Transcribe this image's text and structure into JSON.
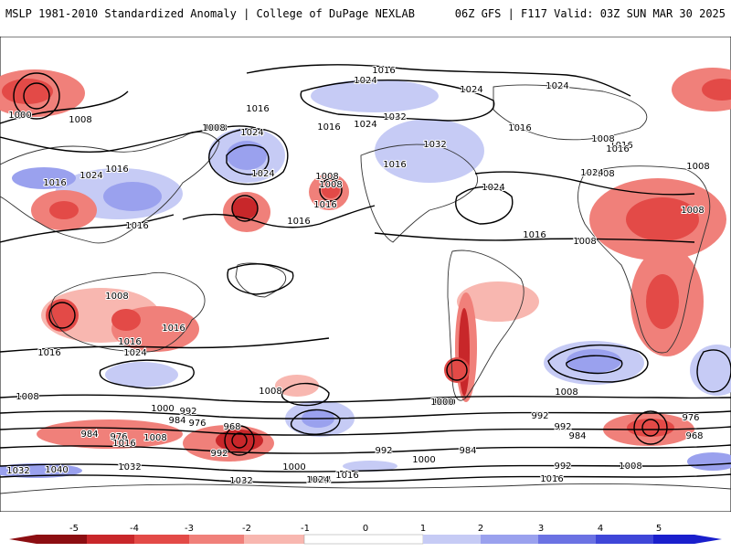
{
  "header": {
    "left_title": "MSLP 1981-2010 Standardized Anomaly | College of DuPage NEXLAB",
    "right_title": "06Z GFS | F117 Valid: 03Z SUN MAR 30 2025"
  },
  "colors": {
    "neg5": "#8c0e12",
    "neg4": "#c8272a",
    "neg3": "#e34a47",
    "neg2": "#f0807a",
    "neg1": "#f8b7b0",
    "pos1": "#c6cbf5",
    "pos2": "#9aa1ee",
    "pos3": "#6b72e3",
    "pos4": "#3f46d8",
    "pos5": "#1a1fcc"
  },
  "colorbar": {
    "ticks": [
      "-5",
      "-4",
      "-3",
      "-2",
      "-1",
      "0",
      "1",
      "2",
      "3",
      "4",
      "5"
    ]
  },
  "isobar_labels": [
    "1016",
    "1024",
    "1024",
    "1024",
    "1000",
    "1008",
    "1008",
    "1024",
    "1016",
    "1032",
    "1016",
    "1024",
    "1032",
    "1016",
    "1016",
    "1024",
    "1016",
    "1008",
    "1024",
    "1008",
    "1016",
    "1008",
    "1024",
    "1016",
    "1016",
    "1008",
    "1008",
    "1016",
    "1008",
    "1008",
    "1016",
    "1016",
    "1024",
    "1016",
    "1008",
    "1008",
    "1016",
    "1016",
    "1016",
    "1024",
    "1008",
    "1000",
    "1008",
    "1000",
    "992",
    "984",
    "976",
    "984",
    "976",
    "1016",
    "1008",
    "968",
    "992",
    "1000",
    "984",
    "992",
    "1008",
    "992",
    "984",
    "1000",
    "976",
    "968",
    "984",
    "992",
    "1008",
    "992",
    "1024",
    "1032",
    "1040",
    "1032",
    "1032",
    "1024",
    "1016",
    "1016",
    "1000"
  ]
}
